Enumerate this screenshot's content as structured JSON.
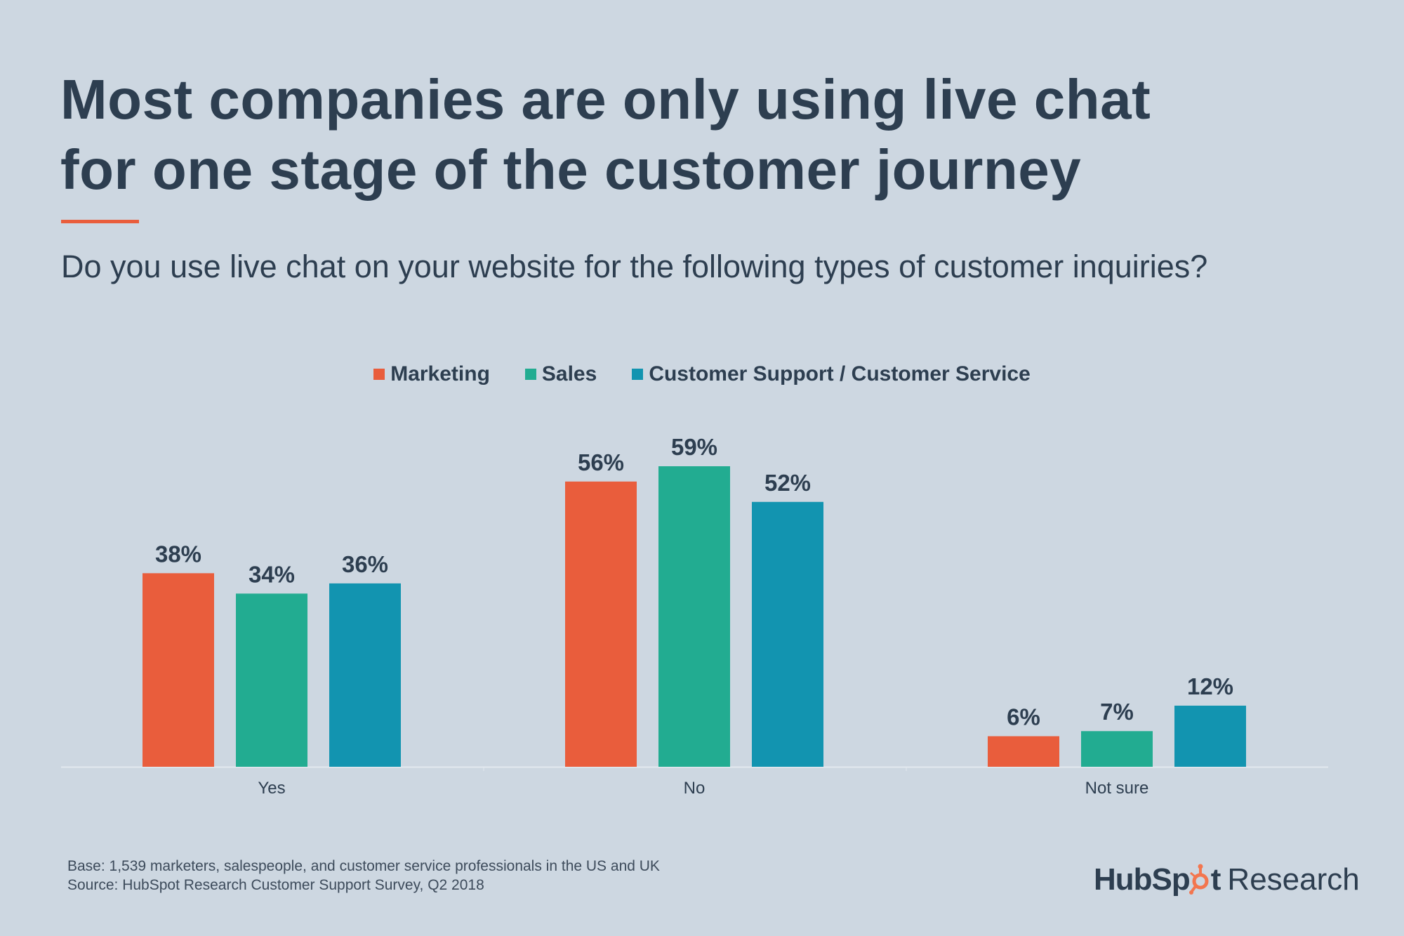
{
  "title_lines": [
    "Most companies are only using live chat",
    "for one stage of the customer journey"
  ],
  "subtitle": "Do you use live chat on your website for the following types of customer inquiries?",
  "accent_color": "#e95d3c",
  "chart_data": {
    "type": "bar",
    "categories": [
      "Yes",
      "No",
      "Not sure"
    ],
    "series": [
      {
        "name": "Marketing",
        "values": [
          38,
          56,
          6
        ],
        "color": "#e95d3c"
      },
      {
        "name": "Sales",
        "values": [
          34,
          59,
          7
        ],
        "color": "#22ac91"
      },
      {
        "name": "Customer Support / Customer Service",
        "values": [
          36,
          52,
          12
        ],
        "color": "#1294b0"
      }
    ],
    "value_suffix": "%",
    "ylim": [
      0,
      59
    ],
    "grid": false,
    "legend_position": "top-center",
    "xlabel": "",
    "ylabel": ""
  },
  "footer": {
    "base": "Base: 1,539 marketers, salespeople, and customer service professionals in the US and UK",
    "source": "Source: HubSpot Research Customer Support Survey, Q2 2018"
  },
  "logo": {
    "brand_part1": "HubSp",
    "brand_part2": "t",
    "suffix": "Research"
  }
}
